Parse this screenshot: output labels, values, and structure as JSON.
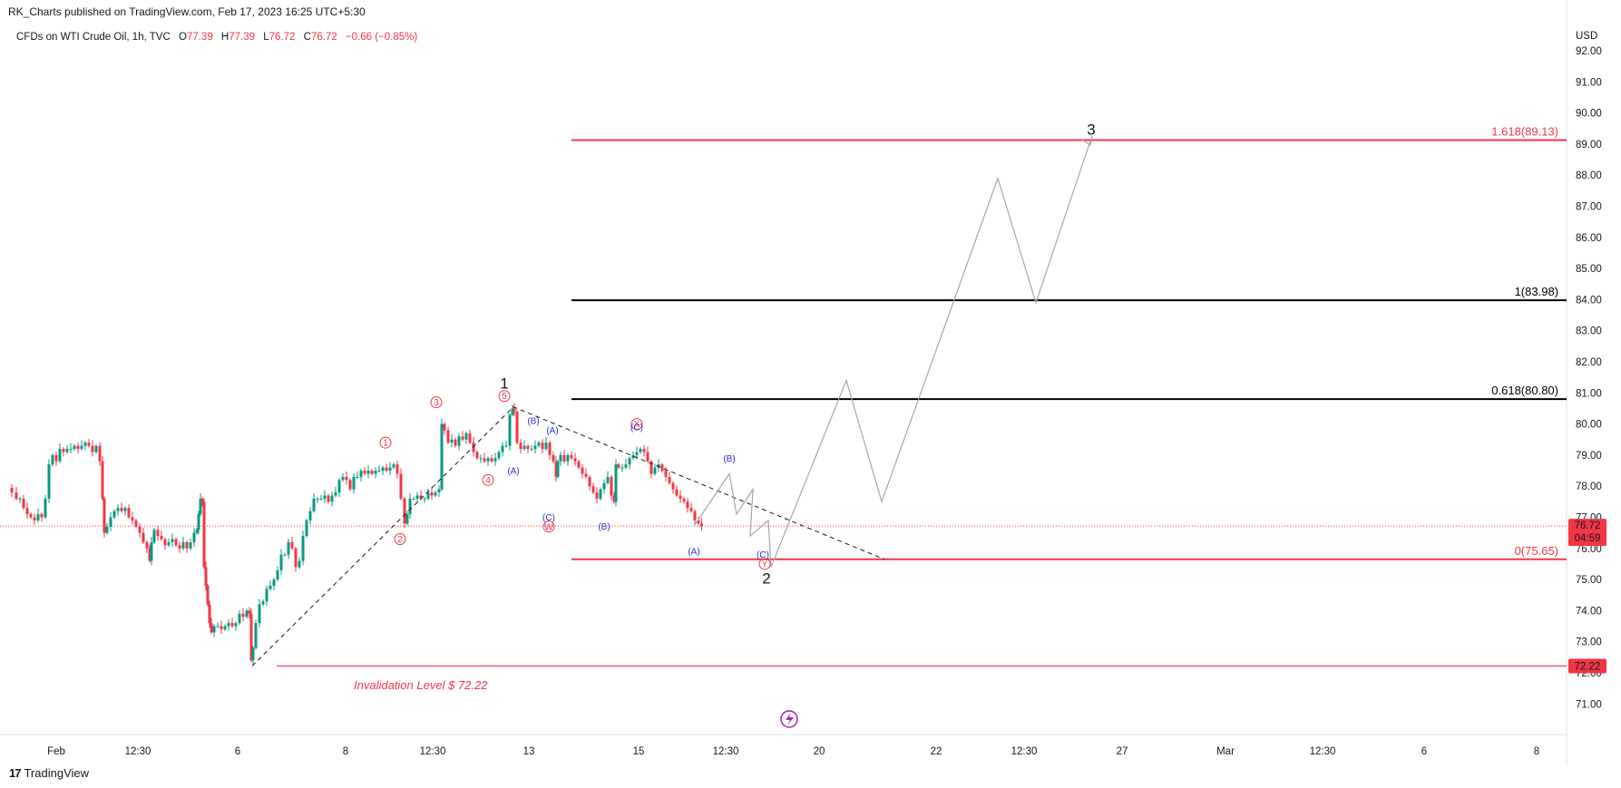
{
  "header": {
    "publisher": "RK_Charts published on TradingView.com, Feb 17, 2023 16:25 UTC+5:30",
    "symbol": "CFDs on WTI Crude Oil, 1h, TVC",
    "o_label": "O",
    "o_value": "77.39",
    "h_label": "H",
    "h_value": "77.39",
    "l_label": "L",
    "l_value": "76.72",
    "c_label": "C",
    "c_value": "76.72",
    "change": "−0.66 (−0.85%)"
  },
  "footer": {
    "brand": "TradingView"
  },
  "chart_data": {
    "type": "candlestick",
    "currency": "USD",
    "ylim": [
      70.3,
      92.5
    ],
    "y_ticks": [
      "92.00",
      "91.00",
      "90.00",
      "89.00",
      "88.00",
      "87.00",
      "86.00",
      "85.00",
      "84.00",
      "83.00",
      "82.00",
      "81.00",
      "80.00",
      "79.00",
      "78.00",
      "77.00",
      "76.00",
      "75.00",
      "74.00",
      "73.00",
      "72.00",
      "71.00"
    ],
    "x_ticks": [
      "Feb",
      "12:30",
      "6",
      "8",
      "12:30",
      "13",
      "15",
      "12:30",
      "20",
      "22",
      "12:30",
      "27",
      "Mar",
      "12:30",
      "6",
      "8"
    ],
    "last_price": "76.72",
    "countdown": "04:59",
    "invalidation_price": "72.22",
    "invalidation_label": "Invalidation Level $ 72.22",
    "fib_levels": [
      {
        "label": "1.618(89.13)",
        "price": 89.13,
        "color": "#f23645"
      },
      {
        "label": "1(83.98)",
        "price": 83.98,
        "color": "#000000"
      },
      {
        "label": "0.618(80.80)",
        "price": 80.8,
        "color": "#000000"
      },
      {
        "label": "0(75.65)",
        "price": 75.65,
        "color": "#f23645"
      }
    ],
    "wave_labels": {
      "big": [
        "1",
        "2",
        "3"
      ],
      "red": [
        "1",
        "2",
        "3",
        "4",
        "5",
        "W",
        "X",
        "Y"
      ],
      "blue": [
        "(A)",
        "(B)",
        "(C)"
      ]
    },
    "price_path": [
      [
        0,
        77.95
      ],
      [
        6,
        77.8
      ],
      [
        10,
        77.6
      ],
      [
        14,
        77.6
      ],
      [
        18,
        77.3
      ],
      [
        22,
        77.1
      ],
      [
        26,
        77.0
      ],
      [
        30,
        76.9
      ],
      [
        34,
        77.1
      ],
      [
        38,
        77.0
      ],
      [
        42,
        77.6
      ],
      [
        46,
        78.7
      ],
      [
        50,
        79.0
      ],
      [
        54,
        78.8
      ],
      [
        58,
        79.2
      ],
      [
        62,
        79.1
      ],
      [
        66,
        79.2
      ],
      [
        70,
        79.2
      ],
      [
        74,
        79.3
      ],
      [
        78,
        79.2
      ],
      [
        82,
        79.3
      ],
      [
        86,
        79.4
      ],
      [
        90,
        79.3
      ],
      [
        94,
        79.1
      ],
      [
        98,
        79.3
      ],
      [
        102,
        78.8
      ],
      [
        104,
        77.6
      ],
      [
        106,
        76.5
      ],
      [
        110,
        76.7
      ],
      [
        114,
        77.0
      ],
      [
        118,
        77.2
      ],
      [
        122,
        77.3
      ],
      [
        126,
        77.2
      ],
      [
        130,
        77.3
      ],
      [
        134,
        77.0
      ],
      [
        138,
        76.9
      ],
      [
        142,
        76.7
      ],
      [
        146,
        76.5
      ],
      [
        150,
        76.2
      ],
      [
        154,
        76.0
      ],
      [
        156,
        75.6
      ],
      [
        158,
        76.2
      ],
      [
        162,
        76.6
      ],
      [
        166,
        76.4
      ],
      [
        170,
        76.3
      ],
      [
        174,
        76.1
      ],
      [
        178,
        76.2
      ],
      [
        182,
        76.3
      ],
      [
        186,
        76.1
      ],
      [
        190,
        76.0
      ],
      [
        194,
        76.2
      ],
      [
        198,
        76.0
      ],
      [
        202,
        76.2
      ],
      [
        206,
        76.5
      ],
      [
        208,
        76.6
      ],
      [
        210,
        77.1
      ],
      [
        212,
        77.6
      ],
      [
        214,
        77.5
      ],
      [
        216,
        75.4
      ],
      [
        218,
        74.8
      ],
      [
        220,
        74.2
      ],
      [
        222,
        73.6
      ],
      [
        224,
        73.3
      ],
      [
        228,
        73.5
      ],
      [
        232,
        73.5
      ],
      [
        236,
        73.4
      ],
      [
        240,
        73.5
      ],
      [
        244,
        73.6
      ],
      [
        248,
        73.5
      ],
      [
        252,
        73.6
      ],
      [
        256,
        73.9
      ],
      [
        260,
        73.8
      ],
      [
        264,
        74.0
      ],
      [
        266,
        73.9
      ],
      [
        268,
        72.4
      ],
      [
        270,
        72.8
      ],
      [
        274,
        73.6
      ],
      [
        278,
        74.2
      ],
      [
        282,
        74.3
      ],
      [
        286,
        74.7
      ],
      [
        290,
        74.8
      ],
      [
        294,
        75.0
      ],
      [
        298,
        75.3
      ],
      [
        302,
        75.8
      ],
      [
        306,
        75.8
      ],
      [
        310,
        76.2
      ],
      [
        314,
        76.0
      ],
      [
        318,
        75.4
      ],
      [
        322,
        75.6
      ],
      [
        326,
        76.4
      ],
      [
        330,
        76.9
      ],
      [
        334,
        77.2
      ],
      [
        338,
        77.6
      ],
      [
        342,
        77.6
      ],
      [
        346,
        77.6
      ],
      [
        350,
        77.7
      ],
      [
        354,
        77.5
      ],
      [
        358,
        77.7
      ],
      [
        362,
        77.8
      ],
      [
        366,
        78.2
      ],
      [
        370,
        78.3
      ],
      [
        374,
        78.2
      ],
      [
        378,
        77.9
      ],
      [
        382,
        78.3
      ],
      [
        386,
        78.3
      ],
      [
        390,
        78.5
      ],
      [
        394,
        78.4
      ],
      [
        398,
        78.5
      ],
      [
        402,
        78.4
      ],
      [
        406,
        78.5
      ],
      [
        410,
        78.5
      ],
      [
        414,
        78.6
      ],
      [
        418,
        78.5
      ],
      [
        422,
        78.6
      ],
      [
        426,
        78.7
      ],
      [
        430,
        78.4
      ],
      [
        434,
        77.6
      ],
      [
        438,
        76.8
      ],
      [
        440,
        77.1
      ],
      [
        444,
        77.6
      ],
      [
        448,
        77.6
      ],
      [
        452,
        77.7
      ],
      [
        456,
        77.6
      ],
      [
        460,
        77.6
      ],
      [
        464,
        77.8
      ],
      [
        468,
        77.7
      ],
      [
        472,
        77.8
      ],
      [
        476,
        77.9
      ],
      [
        478,
        80.0
      ],
      [
        482,
        79.8
      ],
      [
        486,
        79.4
      ],
      [
        490,
        79.5
      ],
      [
        494,
        79.3
      ],
      [
        498,
        79.6
      ],
      [
        502,
        79.5
      ],
      [
        506,
        79.7
      ],
      [
        510,
        79.4
      ],
      [
        514,
        79.1
      ],
      [
        518,
        78.9
      ],
      [
        522,
        78.9
      ],
      [
        526,
        78.8
      ],
      [
        530,
        78.9
      ],
      [
        534,
        78.8
      ],
      [
        538,
        78.9
      ],
      [
        542,
        79.1
      ],
      [
        546,
        79.3
      ],
      [
        550,
        79.3
      ],
      [
        554,
        80.3
      ],
      [
        556,
        80.5
      ],
      [
        558,
        80.4
      ],
      [
        562,
        79.4
      ],
      [
        566,
        79.2
      ],
      [
        570,
        79.3
      ],
      [
        574,
        79.2
      ],
      [
        578,
        79.2
      ],
      [
        582,
        79.3
      ],
      [
        586,
        79.4
      ],
      [
        590,
        79.2
      ],
      [
        594,
        79.4
      ],
      [
        598,
        79.0
      ],
      [
        602,
        78.8
      ],
      [
        604,
        78.3
      ],
      [
        606,
        78.8
      ],
      [
        610,
        79.0
      ],
      [
        614,
        78.8
      ],
      [
        618,
        79.0
      ],
      [
        622,
        78.9
      ],
      [
        626,
        78.8
      ],
      [
        630,
        78.6
      ],
      [
        634,
        78.4
      ],
      [
        638,
        78.3
      ],
      [
        642,
        78.0
      ],
      [
        646,
        77.8
      ],
      [
        650,
        77.6
      ],
      [
        654,
        77.9
      ],
      [
        658,
        78.1
      ],
      [
        662,
        78.3
      ],
      [
        666,
        77.7
      ],
      [
        668,
        77.5
      ],
      [
        670,
        78.7
      ],
      [
        674,
        78.6
      ],
      [
        678,
        78.6
      ],
      [
        682,
        78.7
      ],
      [
        686,
        78.9
      ],
      [
        690,
        79.0
      ],
      [
        694,
        79.1
      ],
      [
        698,
        79.2
      ],
      [
        702,
        79.1
      ],
      [
        706,
        78.8
      ],
      [
        710,
        78.4
      ],
      [
        714,
        78.6
      ],
      [
        718,
        78.7
      ],
      [
        722,
        78.5
      ],
      [
        726,
        78.3
      ],
      [
        730,
        78.1
      ],
      [
        734,
        77.9
      ],
      [
        738,
        77.7
      ],
      [
        742,
        77.6
      ],
      [
        746,
        77.5
      ],
      [
        750,
        77.3
      ],
      [
        754,
        77.2
      ],
      [
        758,
        76.9
      ],
      [
        762,
        76.8
      ],
      [
        765,
        76.72
      ]
    ],
    "projection_grey": [
      [
        765,
        76.72
      ],
      [
        804,
        78.4
      ],
      [
        812,
        77.1
      ],
      [
        830,
        77.9
      ],
      [
        827,
        76.4
      ],
      [
        847,
        76.9
      ],
      [
        850,
        75.4
      ],
      [
        933,
        81.4
      ],
      [
        972,
        77.5
      ],
      [
        1100,
        87.9
      ],
      [
        1142,
        83.9
      ],
      [
        1202,
        89.1
      ]
    ],
    "impulse_dashed": [
      [
        268,
        72.22
      ],
      [
        556,
        80.55
      ],
      [
        965,
        75.65
      ]
    ]
  }
}
